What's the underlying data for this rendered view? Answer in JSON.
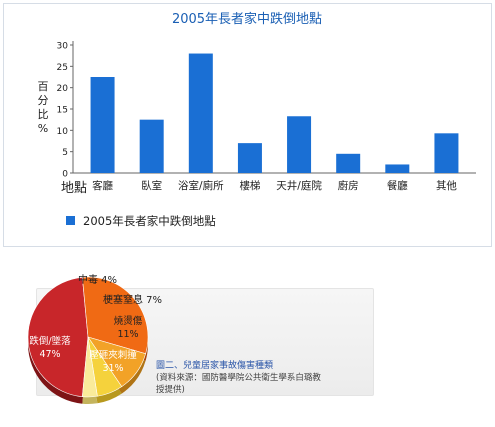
{
  "bar_chart": {
    "title": "2005年長者家中跌倒地點",
    "ylabel": "百分比%",
    "xlabel": "地點",
    "legend": "2005年長者家中跌倒地點"
  },
  "pie_chart": {
    "caption": "圖二、兒童居家事故傷害種類",
    "source_line1": "(資料來源：國防醫學院公共衛生學系白璐教",
    "source_line2": "授提供)"
  },
  "colors": {
    "bar": "#1a6fd4",
    "title": "#1a5fb4",
    "caption": "#2a55a8",
    "falls": "#c8262a",
    "crush": "#f06a14",
    "burns": "#f2a227",
    "choking": "#f5d23c",
    "poisoning": "#faeb9a"
  },
  "chart_data": [
    {
      "type": "bar",
      "title": "2005年長者家中跌倒地點",
      "categories": [
        "客廳",
        "臥室",
        "浴室/廁所",
        "樓梯",
        "天井/庭院",
        "廚房",
        "餐廳",
        "其他"
      ],
      "series": [
        {
          "name": "2005年長者家中跌倒地點",
          "values": [
            22.5,
            12.5,
            28,
            7,
            13.3,
            4.5,
            2,
            9.3
          ]
        }
      ],
      "xlabel": "地點",
      "ylabel": "百分比%",
      "ylim": [
        0,
        30
      ],
      "yticks": [
        0,
        5,
        10,
        15,
        20,
        25,
        30
      ],
      "grid": false,
      "legend_position": "bottom-left"
    },
    {
      "type": "pie",
      "title": "",
      "slices": [
        {
          "label": "跌倒/墜落",
          "pct_label": "47%",
          "value": 47
        },
        {
          "label": "壓砸夾刺撞",
          "pct_label": "31%",
          "value": 31
        },
        {
          "label": "燒燙傷",
          "pct_label": "11%",
          "value": 11
        },
        {
          "label": "梗塞窒息",
          "pct_label": "7%",
          "value": 7
        },
        {
          "label": "中毒",
          "pct_label": "4%",
          "value": 4
        }
      ],
      "legend_position": "none"
    }
  ]
}
